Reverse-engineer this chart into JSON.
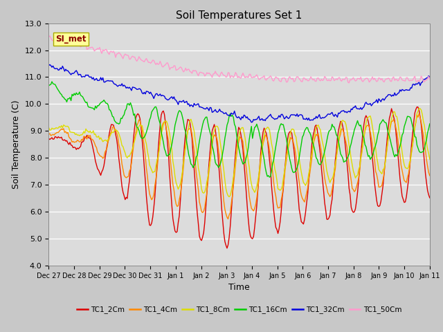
{
  "title": "Soil Temperatures Set 1",
  "xlabel": "Time",
  "ylabel": "Soil Temperature (C)",
  "ylim": [
    4.0,
    13.0
  ],
  "yticks": [
    4.0,
    5.0,
    6.0,
    7.0,
    8.0,
    9.0,
    10.0,
    11.0,
    12.0,
    13.0
  ],
  "x_tick_labels": [
    "Dec 27",
    "Dec 28",
    "Dec 29",
    "Dec 30",
    "Dec 31",
    "Jan 1",
    "Jan 2",
    "Jan 3",
    "Jan 4",
    "Jan 5",
    "Jan 6",
    "Jan 7",
    "Jan 8",
    "Jan 9",
    "Jan 10",
    "Jan 11"
  ],
  "annotation_text": "SI_met",
  "annotation_color": "#8B0000",
  "annotation_bg": "#FFFF99",
  "fig_bg": "#C8C8C8",
  "plot_bg": "#DCDCDC",
  "series": {
    "TC1_2Cm": {
      "color": "#DD0000",
      "lw": 1.0
    },
    "TC1_4Cm": {
      "color": "#FF8800",
      "lw": 1.0
    },
    "TC1_8Cm": {
      "color": "#DDDD00",
      "lw": 1.0
    },
    "TC1_16Cm": {
      "color": "#00CC00",
      "lw": 1.0
    },
    "TC1_32Cm": {
      "color": "#0000DD",
      "lw": 1.0
    },
    "TC1_50Cm": {
      "color": "#FF99CC",
      "lw": 1.0
    }
  },
  "legend_labels": [
    "TC1_2Cm",
    "TC1_4Cm",
    "TC1_8Cm",
    "TC1_16Cm",
    "TC1_32Cm",
    "TC1_50Cm"
  ],
  "legend_colors": [
    "#DD0000",
    "#FF8800",
    "#DDDD00",
    "#00CC00",
    "#0000DD",
    "#FF99CC"
  ]
}
